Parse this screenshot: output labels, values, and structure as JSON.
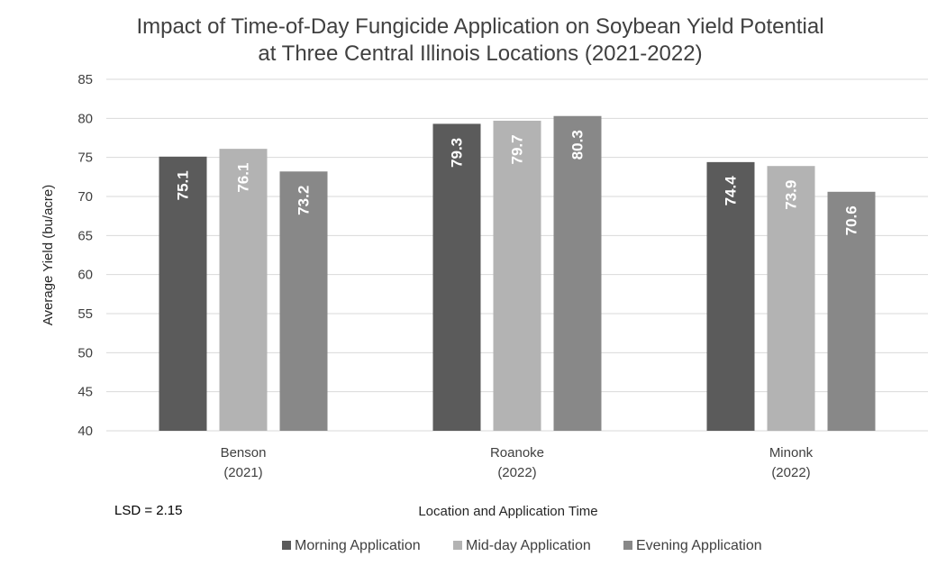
{
  "chart_data": {
    "type": "bar",
    "title": [
      "Impact of Time-of-Day Fungicide Application on Soybean Yield Potential",
      "at Three Central Illinois Locations (2021-2022)"
    ],
    "categories": [
      [
        "Benson",
        "(2021)"
      ],
      [
        "Roanoke",
        "(2022)"
      ],
      [
        "Minonk",
        "(2022)"
      ]
    ],
    "series": [
      {
        "name": "Morning Application",
        "color": "#5b5b5b",
        "values": [
          75.1,
          79.3,
          74.4
        ]
      },
      {
        "name": "Mid-day Application",
        "color": "#b3b3b3",
        "values": [
          76.1,
          79.7,
          73.9
        ]
      },
      {
        "name": "Evening Application",
        "color": "#888888",
        "values": [
          73.2,
          80.3,
          70.6
        ]
      }
    ],
    "xlabel": "Location and  Application Time",
    "ylabel": "Average Yield (bu/acre)",
    "ylim": [
      40,
      85
    ],
    "yticks": [
      40,
      45,
      50,
      55,
      60,
      65,
      70,
      75,
      80,
      85
    ],
    "grid": true,
    "legend": "bottom",
    "annotation": "LSD = 2.15"
  }
}
